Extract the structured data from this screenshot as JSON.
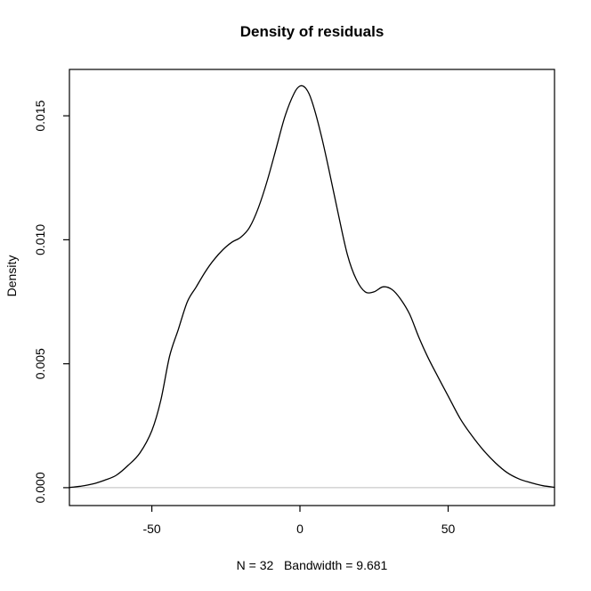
{
  "chart_data": {
    "type": "line",
    "title": "Density of residuals",
    "ylabel": "Density",
    "xlabel": "N = 32   Bandwidth = 9.681",
    "legend": null,
    "grid": false,
    "xlim": [
      -77.8,
      85.9
    ],
    "ylim": [
      -0.00072,
      0.01687
    ],
    "x_ticks": [
      -50,
      0,
      50
    ],
    "y_ticks": [
      0,
      0.005,
      0.01,
      0.015
    ],
    "y_tick_decimals": 3,
    "curve_color": "#000000",
    "box_color": "#000000",
    "zero_line": {
      "y": 0,
      "color": "#bebebe"
    },
    "series": [
      {
        "name": "density",
        "points": [
          [
            -77.8,
            1e-05
          ],
          [
            -74,
            6e-05
          ],
          [
            -70,
            0.00015
          ],
          [
            -66,
            0.0003
          ],
          [
            -62,
            0.0005
          ],
          [
            -58,
            0.0009
          ],
          [
            -54,
            0.0014
          ],
          [
            -50,
            0.0023
          ],
          [
            -47,
            0.0035
          ],
          [
            -44,
            0.0053
          ],
          [
            -41,
            0.0064
          ],
          [
            -38,
            0.0075
          ],
          [
            -35,
            0.0081
          ],
          [
            -32,
            0.0087
          ],
          [
            -29,
            0.0092
          ],
          [
            -26,
            0.0096
          ],
          [
            -23,
            0.0099
          ],
          [
            -20,
            0.0101
          ],
          [
            -17,
            0.0105
          ],
          [
            -14,
            0.0113
          ],
          [
            -11,
            0.0124
          ],
          [
            -8,
            0.0137
          ],
          [
            -5,
            0.015
          ],
          [
            -2,
            0.0159
          ],
          [
            0,
            0.0162
          ],
          [
            2,
            0.0161
          ],
          [
            4,
            0.0156
          ],
          [
            7,
            0.0143
          ],
          [
            10,
            0.0127
          ],
          [
            13,
            0.011
          ],
          [
            16,
            0.0094
          ],
          [
            19,
            0.0084
          ],
          [
            22,
            0.0079
          ],
          [
            25,
            0.0079
          ],
          [
            28,
            0.0081
          ],
          [
            31,
            0.008
          ],
          [
            34,
            0.0076
          ],
          [
            37,
            0.007
          ],
          [
            40,
            0.0061
          ],
          [
            43,
            0.0053
          ],
          [
            46,
            0.0046
          ],
          [
            50,
            0.0037
          ],
          [
            54,
            0.0028
          ],
          [
            58,
            0.0021
          ],
          [
            62,
            0.0015
          ],
          [
            66,
            0.001
          ],
          [
            70,
            0.0006
          ],
          [
            74,
            0.00035
          ],
          [
            78,
            0.0002
          ],
          [
            82,
            8e-05
          ],
          [
            85.9,
            2e-05
          ]
        ]
      }
    ]
  }
}
